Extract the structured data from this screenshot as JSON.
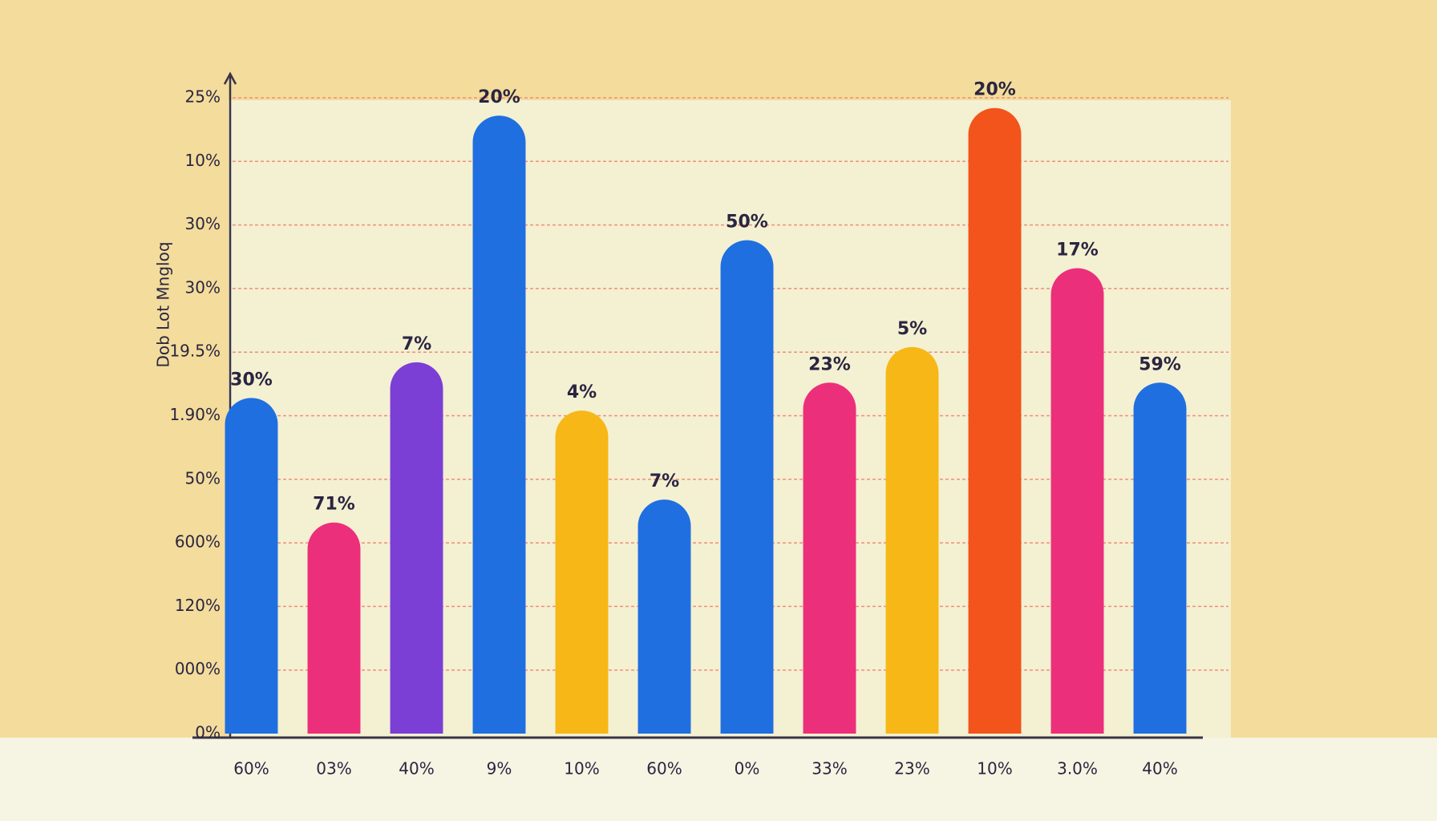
{
  "chart_data": {
    "type": "bar",
    "y_axis_label": "Dob Lot Mngloq",
    "categories": [
      "60%",
      "03%",
      "40%",
      "9%",
      "10%",
      "60%",
      "0%",
      "33%",
      "23%",
      "10%",
      "3.0%",
      "40%"
    ],
    "values": [
      13.2,
      8.3,
      14.6,
      24.3,
      12.7,
      9.2,
      19.4,
      13.8,
      15.2,
      24.6,
      18.3,
      13.8
    ],
    "colors": [
      "#1f6fe0",
      "#ec2f7b",
      "#7b3fd6",
      "#1f6fe0",
      "#f7b716",
      "#1f6fe0",
      "#1f6fe0",
      "#ec2f7b",
      "#f7b716",
      "#f2541b",
      "#ec2f7b",
      "#1f6fe0"
    ],
    "bar_top_labels": [
      "30%",
      "71%",
      "7%",
      "20%",
      "4%",
      "7%",
      "50%",
      "23%",
      "5%",
      "20%",
      "17%",
      "59%"
    ],
    "ylim": [
      0,
      25
    ],
    "yticks": [
      {
        "value": 0,
        "label": "0%"
      },
      {
        "value": 25,
        "label": "25%"
      }
    ],
    "y_axis_middle_labels": [
      "10%",
      "30%",
      "30%",
      "19.5%",
      "1.90%",
      "50%",
      "600%",
      "120%",
      "000%"
    ],
    "grid": true
  }
}
